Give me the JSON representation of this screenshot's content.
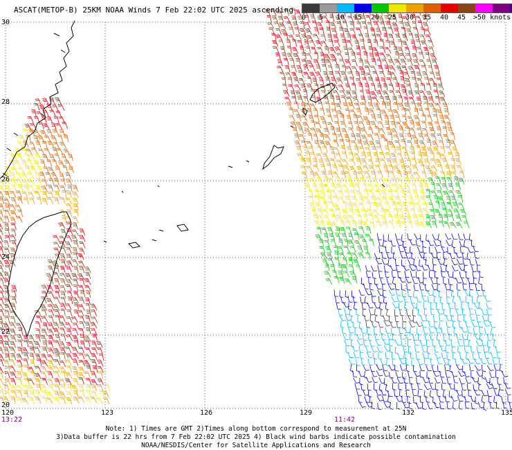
{
  "header": {
    "title": "ASCAT(METOP-B) 25KM NOAA Winds 7 Feb 22:02 UTC 2025 ascending"
  },
  "legend": {
    "colors": [
      "#3a3a3a",
      "#9a9a9a",
      "#00b8ff",
      "#0000e6",
      "#00c800",
      "#f0e600",
      "#f0a000",
      "#e06000",
      "#e60000",
      "#8b4513",
      "#ff00ff",
      "#800080",
      "#3c0090"
    ],
    "tick_labels": [
      "0",
      "5",
      "10",
      "15",
      "20",
      "25",
      "30",
      "35",
      "40",
      "45",
      ">50 knots"
    ]
  },
  "axes": {
    "lon_labels": [
      "120",
      "123",
      "126",
      "129",
      "132",
      "135"
    ],
    "lat_labels": [
      "20",
      "22",
      "24",
      "26",
      "28",
      "30"
    ]
  },
  "times": {
    "left": "13:22",
    "right": "11:42"
  },
  "notes": {
    "line1": "Note: 1) Times are GMT 2)Times along bottom correspond to measurement at 25N",
    "line2": "3)Data buffer is 22 hrs from 7 Feb 22:02 UTC 2025 4) Black wind barbs indicate possible contamination",
    "line3": "NOAA/NESDIS/Center for Satellite Applications and Research"
  }
}
